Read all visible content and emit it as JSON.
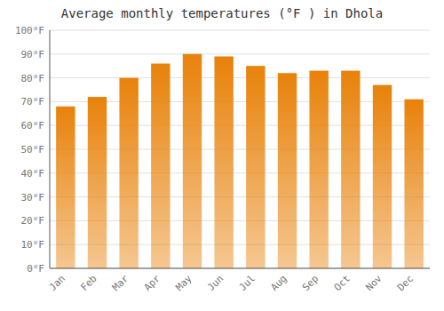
{
  "chart_data": {
    "type": "bar",
    "title": "Average monthly temperatures (°F ) in Dhola",
    "categories": [
      "Jan",
      "Feb",
      "Mar",
      "Apr",
      "May",
      "Jun",
      "Jul",
      "Aug",
      "Sep",
      "Oct",
      "Nov",
      "Dec"
    ],
    "values": [
      68,
      72,
      80,
      86,
      90,
      89,
      85,
      82,
      83,
      83,
      77,
      71
    ],
    "color": "#E8820A",
    "ylim": [
      0,
      100
    ],
    "yticks": [
      {
        "value": 0,
        "label": "0°F"
      },
      {
        "value": 10,
        "label": "10°F"
      },
      {
        "value": 20,
        "label": "20°F"
      },
      {
        "value": 30,
        "label": "30°F"
      },
      {
        "value": 40,
        "label": "40°F"
      },
      {
        "value": 50,
        "label": "50°F"
      },
      {
        "value": 60,
        "label": "60°F"
      },
      {
        "value": 70,
        "label": "70°F"
      },
      {
        "value": 80,
        "label": "80°F"
      },
      {
        "value": 90,
        "label": "90°F"
      },
      {
        "value": 100,
        "label": "100°F"
      }
    ],
    "grid": true
  }
}
